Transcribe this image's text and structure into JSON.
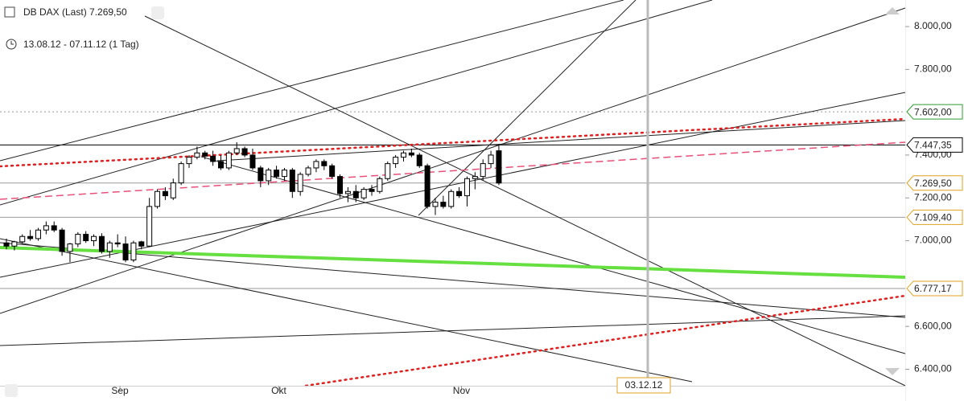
{
  "chart_data": {
    "type": "candlestick",
    "title": "DB DAX (Last) 7.269,50",
    "period": "13.08.12 - 07.11.12 (1 Tag)",
    "crosshair_label": "03.12.12",
    "categories": [
      null,
      null,
      null,
      null,
      null,
      null,
      null,
      null,
      null,
      null,
      null,
      null,
      null,
      null,
      null,
      "Sep",
      null,
      null,
      null,
      null,
      null,
      null,
      null,
      null,
      null,
      null,
      null,
      null,
      null,
      null,
      null,
      null,
      null,
      null,
      null,
      "Okt",
      null,
      null,
      null,
      null,
      null,
      null,
      null,
      null,
      null,
      null,
      null,
      null,
      null,
      null,
      null,
      null,
      null,
      null,
      null,
      null,
      null,
      null,
      "Nov",
      null,
      null,
      null,
      null
    ],
    "open": [
      6990,
      6975,
      6995,
      7020,
      7010,
      7050,
      7070,
      7050,
      6950,
      6985,
      7030,
      7000,
      7020,
      6950,
      6990,
      6985,
      6910,
      6995,
      6975,
      7160,
      7230,
      7200,
      7270,
      7360,
      7390,
      7410,
      7395,
      7370,
      7340,
      7410,
      7430,
      7400,
      7340,
      7280,
      7330,
      7300,
      7330,
      7230,
      7310,
      7340,
      7370,
      7350,
      7300,
      7220,
      7230,
      7200,
      7240,
      7230,
      7290,
      7360,
      7390,
      7410,
      7400,
      7350,
      7160,
      7180,
      7160,
      7230,
      7210,
      7290,
      7300,
      7360,
      7420
    ],
    "high": [
      7010,
      7000,
      7030,
      7050,
      7060,
      7090,
      7090,
      7060,
      6990,
      7040,
      7045,
      7030,
      7035,
      7000,
      7030,
      7020,
      7000,
      7000,
      7200,
      7240,
      7250,
      7290,
      7370,
      7400,
      7440,
      7420,
      7420,
      7400,
      7420,
      7460,
      7440,
      7430,
      7350,
      7340,
      7350,
      7340,
      7340,
      7320,
      7350,
      7380,
      7380,
      7360,
      7310,
      7250,
      7260,
      7250,
      7260,
      7300,
      7370,
      7400,
      7420,
      7430,
      7410,
      7360,
      7200,
      7210,
      7240,
      7250,
      7300,
      7320,
      7380,
      7420,
      7450
    ],
    "low": [
      6960,
      6955,
      6985,
      7000,
      7000,
      7030,
      7040,
      6930,
      6900,
      6970,
      6990,
      6975,
      6940,
      6920,
      6970,
      6900,
      6900,
      6960,
      6970,
      7150,
      7190,
      7190,
      7260,
      7340,
      7380,
      7380,
      7350,
      7330,
      7330,
      7400,
      7390,
      7330,
      7250,
      7260,
      7290,
      7280,
      7200,
      7210,
      7300,
      7320,
      7330,
      7290,
      7200,
      7180,
      7180,
      7190,
      7210,
      7220,
      7280,
      7340,
      7370,
      7390,
      7340,
      7150,
      7120,
      7150,
      7150,
      7200,
      7160,
      7240,
      7280,
      7340,
      7260
    ],
    "close": [
      6975,
      6995,
      7020,
      7010,
      7050,
      7070,
      7050,
      6950,
      6985,
      7030,
      7000,
      7020,
      6950,
      6990,
      6985,
      6910,
      6990,
      6975,
      7160,
      7230,
      7210,
      7270,
      7360,
      7390,
      7410,
      7395,
      7370,
      7340,
      7410,
      7430,
      7400,
      7340,
      7280,
      7330,
      7300,
      7330,
      7230,
      7310,
      7340,
      7370,
      7350,
      7300,
      7220,
      7230,
      7200,
      7240,
      7230,
      7290,
      7360,
      7390,
      7410,
      7400,
      7350,
      7160,
      7180,
      7160,
      7230,
      7210,
      7290,
      7300,
      7360,
      7400,
      7269.5
    ],
    "up_color": "#ffffff",
    "down_color": "#000000",
    "ylim": [
      6323,
      8124
    ],
    "yticks": [
      {
        "value": 6400,
        "label": "6.400,00"
      },
      {
        "value": 6600,
        "label": "6.600,00"
      },
      {
        "value": 7000,
        "label": "7.000,00"
      },
      {
        "value": 7200,
        "label": "7.200,00"
      },
      {
        "value": 7400,
        "label": "7.400,00"
      },
      {
        "value": 7800,
        "label": "7.800,00"
      },
      {
        "value": 8000,
        "label": "8.000,00"
      }
    ],
    "levels": [
      {
        "value": 7602,
        "label": "7.602,00",
        "color": "#2e9e2e"
      },
      {
        "value": 7447.35,
        "label": "7.447,35",
        "color": "#000000"
      },
      {
        "value": 7269.5,
        "label": "7.269,50",
        "color": "#e0a020"
      },
      {
        "value": 7109.4,
        "label": "7.109,40",
        "color": "#e0a020"
      },
      {
        "value": 6777.17,
        "label": "6.777,17",
        "color": "#e0a020"
      }
    ]
  }
}
